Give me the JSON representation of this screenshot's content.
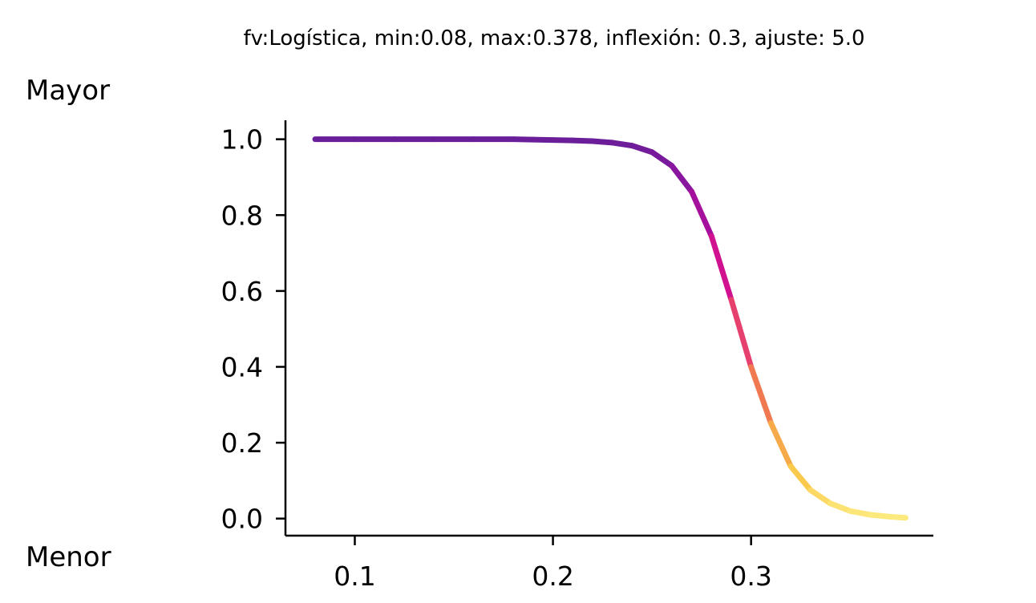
{
  "chart_data": {
    "type": "line",
    "title": "fv:Logística, min:0.08, max:0.378, inflexión: 0.3, ajuste: 5.0",
    "xlabel": "",
    "ylabel": "",
    "side_labels": {
      "top": "Mayor",
      "bottom": "Menor"
    },
    "xlim": [
      0.065,
      0.392
    ],
    "ylim": [
      -0.045,
      1.05
    ],
    "x_ticks": [
      {
        "value": 0.1,
        "label": "0.1"
      },
      {
        "value": 0.2,
        "label": "0.2"
      },
      {
        "value": 0.3,
        "label": "0.3"
      }
    ],
    "y_ticks": [
      {
        "value": 0.0,
        "label": "0.0"
      },
      {
        "value": 0.2,
        "label": "0.2"
      },
      {
        "value": 0.4,
        "label": "0.4"
      },
      {
        "value": 0.6,
        "label": "0.6"
      },
      {
        "value": 0.8,
        "label": "0.8"
      },
      {
        "value": 1.0,
        "label": "1.0"
      }
    ],
    "grid": false,
    "colormap": "plasma",
    "series": [
      {
        "x": [
          0.08,
          0.1,
          0.12,
          0.14,
          0.16,
          0.18,
          0.19,
          0.2,
          0.21,
          0.22,
          0.23,
          0.24,
          0.25,
          0.26,
          0.27,
          0.28,
          0.29,
          0.3,
          0.31,
          0.32,
          0.33,
          0.34,
          0.35,
          0.36,
          0.37,
          0.378
        ],
        "y": [
          1.0,
          1.0,
          1.0,
          1.0,
          1.0,
          1.0,
          0.999,
          0.998,
          0.997,
          0.995,
          0.991,
          0.983,
          0.966,
          0.93,
          0.862,
          0.745,
          0.577,
          0.4,
          0.252,
          0.138,
          0.075,
          0.04,
          0.02,
          0.01,
          0.005,
          0.002
        ]
      }
    ]
  }
}
